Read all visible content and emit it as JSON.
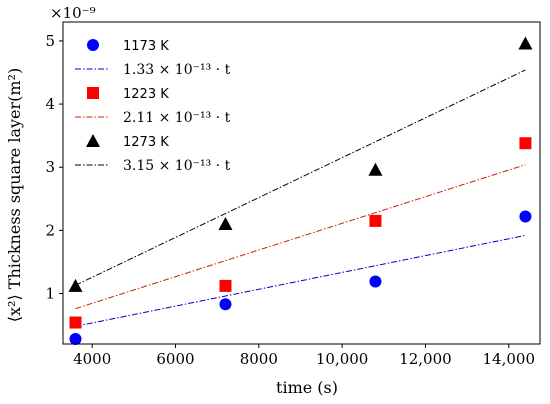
{
  "chart_data": {
    "type": "scatter",
    "xlabel": "time (s)",
    "ylabel": "⟨x²⟩ Thickness square layer(m²)",
    "y_multiplier": "×10⁻⁹",
    "xlim": [
      3300,
      14750
    ],
    "ylim": [
      0.2,
      5.3
    ],
    "x_ticks": [
      4000,
      6000,
      8000,
      10000,
      12000,
      14000
    ],
    "x_tick_labels": [
      "4000",
      "6000",
      "8000",
      "10,000",
      "12,000",
      "14,000"
    ],
    "y_ticks": [
      1,
      2,
      3,
      4,
      5
    ],
    "y_tick_labels": [
      "1",
      "2",
      "3",
      "4",
      "5"
    ],
    "legend_position": "upper-left",
    "series": [
      {
        "name": "1173 K",
        "marker": "circle",
        "color": "#0000ff",
        "x": [
          3600,
          7200,
          10800,
          14400
        ],
        "y": [
          0.28,
          0.83,
          1.19,
          2.22
        ],
        "fit_label": "1.33 × 10⁻¹³ · t",
        "fit_line": {
          "x": [
            3600,
            14400
          ],
          "y": [
            0.48,
            1.92
          ]
        },
        "fit_color": "#0000cc"
      },
      {
        "name": "1223 K",
        "marker": "square",
        "color": "#ff0000",
        "x": [
          3600,
          7200,
          10800,
          14400
        ],
        "y": [
          0.54,
          1.12,
          2.15,
          3.38
        ],
        "fit_label": "2.11 × 10⁻¹³ · t",
        "fit_line": {
          "x": [
            3600,
            14400
          ],
          "y": [
            0.76,
            3.04
          ]
        },
        "fit_color": "#cc2200"
      },
      {
        "name": "1273 K",
        "marker": "triangle",
        "color": "#000000",
        "x": [
          3600,
          7200,
          10800,
          14400
        ],
        "y": [
          1.12,
          2.1,
          2.96,
          4.96
        ],
        "fit_label": "3.15 × 10⁻¹³ · t",
        "fit_line": {
          "x": [
            3600,
            14400
          ],
          "y": [
            1.13,
            4.54
          ]
        },
        "fit_color": "#000000"
      }
    ]
  }
}
